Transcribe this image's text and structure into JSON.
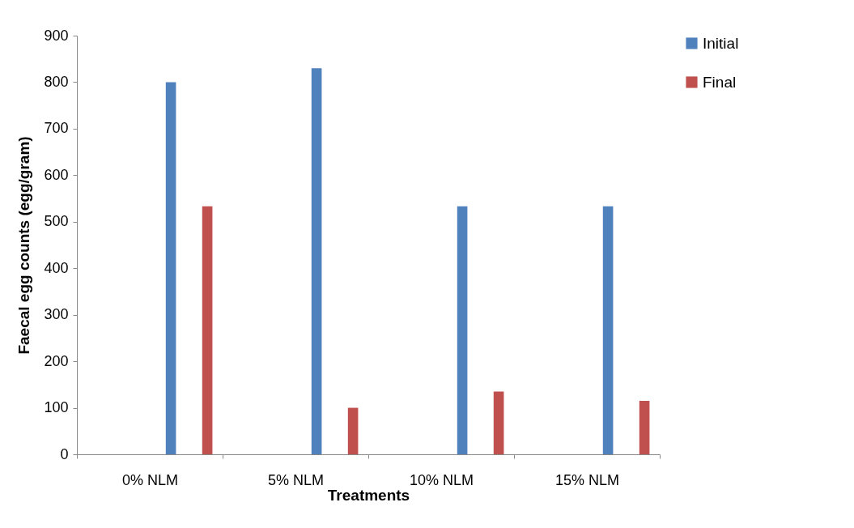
{
  "chart_data": {
    "type": "bar",
    "xlabel": "Treatments",
    "ylabel": "Faecal egg counts (egg/gram)",
    "categories": [
      "0% NLM",
      "5% NLM",
      "10% NLM",
      "15% NLM"
    ],
    "series": [
      {
        "name": "Initial",
        "color": "#4f81bd",
        "values": [
          800,
          830,
          533,
          533
        ]
      },
      {
        "name": "Final",
        "color": "#c0504d",
        "values": [
          533,
          100,
          135,
          115
        ]
      }
    ],
    "ylim": [
      0,
      900
    ],
    "yticks": [
      0,
      100,
      200,
      300,
      400,
      500,
      600,
      700,
      800,
      900
    ],
    "grid": false,
    "legend": "right"
  }
}
